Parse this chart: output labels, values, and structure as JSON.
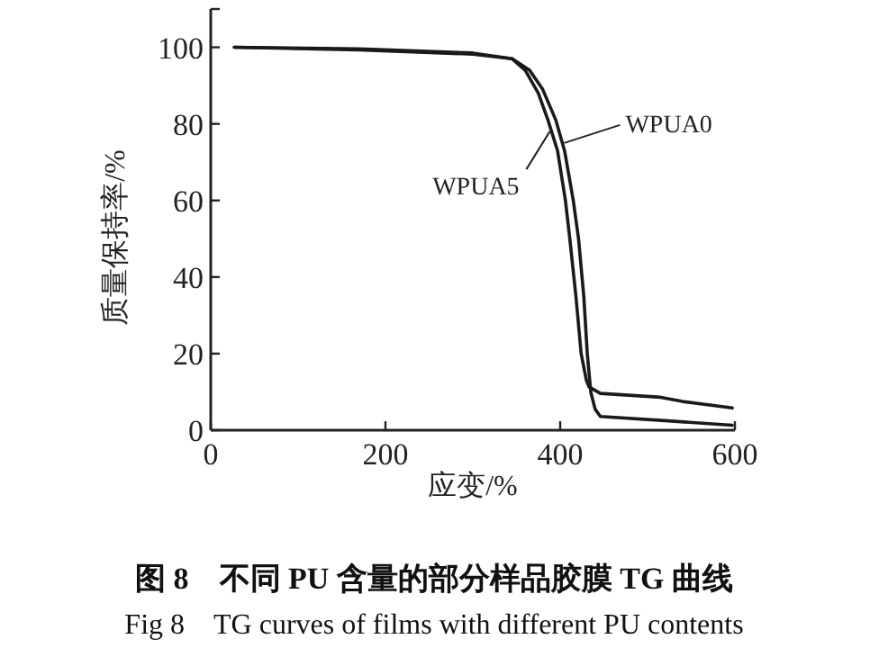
{
  "chart_data": {
    "type": "line",
    "title": "图 8　不同 PU 含量的部分样品胶膜 TG 曲线",
    "subtitle": "Fig 8　TG curves of films with different PU contents",
    "xlabel": "应变/%",
    "ylabel": "质量保持率/%",
    "xlim": [
      0,
      600
    ],
    "ylim": [
      0,
      110
    ],
    "xticks": [
      0,
      200,
      400,
      600
    ],
    "yticks": [
      0,
      20,
      40,
      60,
      80,
      100
    ],
    "series": [
      {
        "name": "WPUA0",
        "color": "#1a1a1a",
        "x": [
          27,
          170,
          300,
          345,
          365,
          380,
          395,
          405,
          415,
          421,
          427,
          431,
          435,
          440,
          446,
          520,
          597
        ],
        "values": [
          100,
          99.3,
          98.2,
          97,
          94,
          89,
          81,
          73,
          60,
          50,
          35,
          20,
          10,
          5.5,
          3.6,
          2.5,
          1.3
        ]
      },
      {
        "name": "WPUA5",
        "color": "#1a1a1a",
        "x": [
          27,
          170,
          300,
          345,
          360,
          375,
          386,
          397,
          406,
          411,
          418,
          424,
          430,
          433,
          446,
          515,
          540,
          597
        ],
        "values": [
          100,
          99.6,
          98.5,
          97,
          94,
          88,
          81,
          73,
          60,
          50,
          35,
          20,
          13,
          11.3,
          9.6,
          8.6,
          7.5,
          5.8
        ]
      }
    ]
  }
}
